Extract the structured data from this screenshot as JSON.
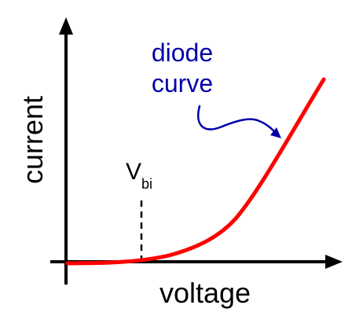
{
  "diagram": {
    "ylabel": "current",
    "xlabel": "voltage",
    "vbi": {
      "symbol": "V",
      "subscript": "bi"
    },
    "annotation": {
      "line1": "diode",
      "line2": "curve"
    },
    "colors": {
      "axes": "#000000",
      "curve": "#ff0000",
      "annotation": "#0000aa",
      "background": "#ffffff"
    }
  }
}
